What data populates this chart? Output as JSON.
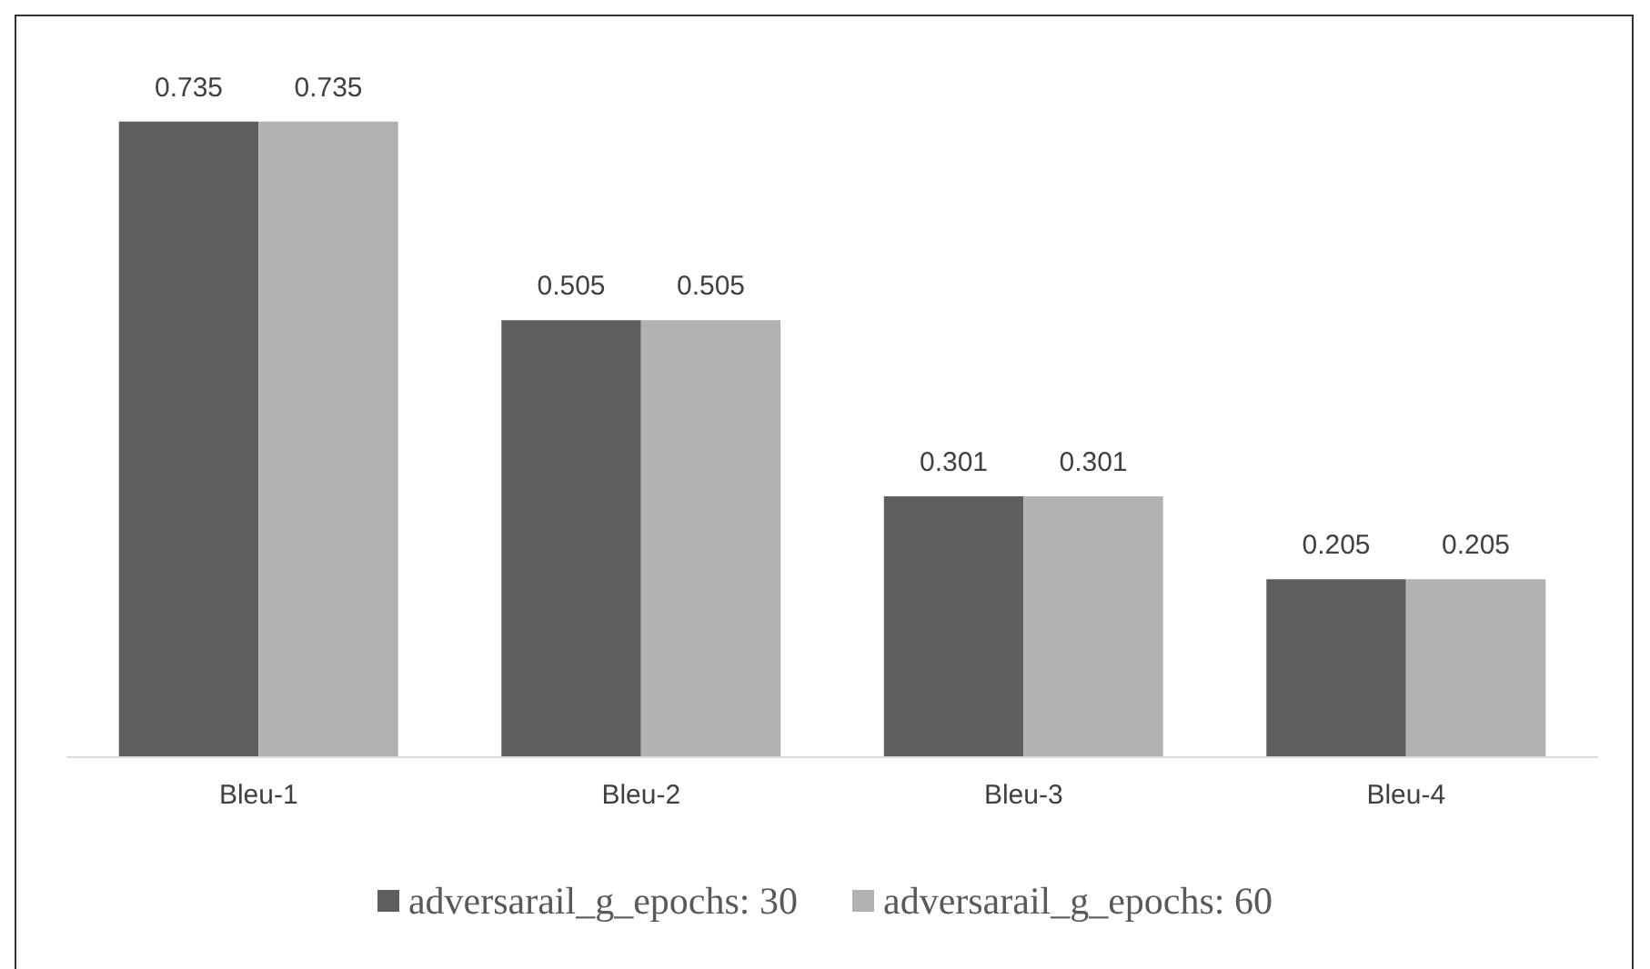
{
  "chart_data": {
    "type": "bar",
    "categories": [
      "Bleu-1",
      "Bleu-2",
      "Bleu-3",
      "Bleu-4"
    ],
    "series": [
      {
        "name": "adversarail_g_epochs: 30",
        "color": "#5e5e5e",
        "values": [
          0.735,
          0.505,
          0.301,
          0.205
        ]
      },
      {
        "name": "adversarail_g_epochs: 60",
        "color": "#b2b2b2",
        "values": [
          0.735,
          0.505,
          0.301,
          0.205
        ]
      }
    ],
    "data_labels": true,
    "legend": "bottom"
  }
}
